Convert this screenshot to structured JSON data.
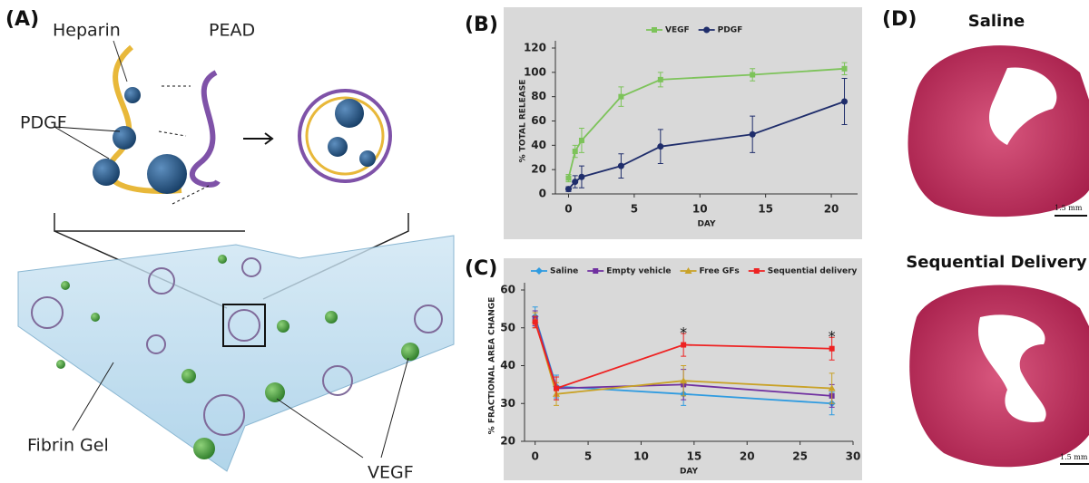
{
  "panel_a": {
    "label": "(A)",
    "texts": [
      "Heparin",
      "PEAD",
      "PDGF",
      "Fibrin Gel",
      "VEGF"
    ]
  },
  "chart_data": [
    {
      "type": "line",
      "panel_label": "(B)",
      "xlabel": "DAY",
      "ylabel": "% TOTAL RELEASE",
      "x": [
        0,
        0.5,
        1,
        4,
        7,
        14,
        21
      ],
      "series": [
        {
          "name": "VEGF",
          "color": "#7dc35a",
          "marker": "square",
          "values": [
            13,
            35,
            44,
            80,
            94,
            98,
            103
          ],
          "errors": [
            3,
            5,
            10,
            8,
            6,
            5,
            5
          ]
        },
        {
          "name": "PDGF",
          "color": "#1f2d6b",
          "marker": "circle",
          "values": [
            4,
            10,
            14,
            23,
            39,
            49,
            76
          ],
          "errors": [
            2,
            5,
            9,
            10,
            14,
            15,
            19
          ]
        }
      ],
      "xlim": [
        -1,
        22
      ],
      "ylim": [
        0,
        120
      ],
      "xticks": [
        0,
        5,
        10,
        15,
        20
      ],
      "yticks": [
        0,
        20,
        40,
        60,
        80,
        100,
        120
      ],
      "grid": false
    },
    {
      "type": "line",
      "panel_label": "(C)",
      "xlabel": "DAY",
      "ylabel": "% FRACTIONAL AREA CHANGE",
      "x": [
        0,
        2,
        14,
        28
      ],
      "series": [
        {
          "name": "Saline",
          "color": "#2f9be0",
          "marker": "diamond",
          "values": [
            53,
            34.5,
            32.5,
            30
          ],
          "errors": [
            2.5,
            3,
            3,
            3
          ]
        },
        {
          "name": "Empty vehicle",
          "color": "#7030a0",
          "marker": "square",
          "values": [
            52.5,
            34,
            35,
            32
          ],
          "errors": [
            2,
            3,
            4,
            3
          ]
        },
        {
          "name": "Free GFs",
          "color": "#c9a227",
          "marker": "triangle",
          "values": [
            52,
            32.5,
            36,
            34
          ],
          "errors": [
            2,
            3,
            4,
            4
          ]
        },
        {
          "name": "Sequential delivery",
          "color": "#ee2222",
          "marker": "square",
          "values": [
            51.5,
            34,
            45.5,
            44.5
          ],
          "errors": [
            1.5,
            3,
            3,
            3
          ]
        }
      ],
      "annotations": [
        {
          "text": "*",
          "x": 14,
          "y": 48.5
        },
        {
          "text": "*",
          "x": 28,
          "y": 47.5
        }
      ],
      "xlim": [
        -1,
        30
      ],
      "ylim": [
        20,
        60
      ],
      "xticks": [
        0,
        5,
        10,
        15,
        20,
        25,
        30
      ],
      "yticks": [
        20,
        30,
        40,
        50,
        60
      ],
      "grid": false
    }
  ],
  "panel_d": {
    "label": "(D)",
    "titles": [
      "Saline",
      "Sequential Delivery"
    ],
    "scale_bars": [
      "1.5 mm",
      "1.5 mm"
    ]
  }
}
